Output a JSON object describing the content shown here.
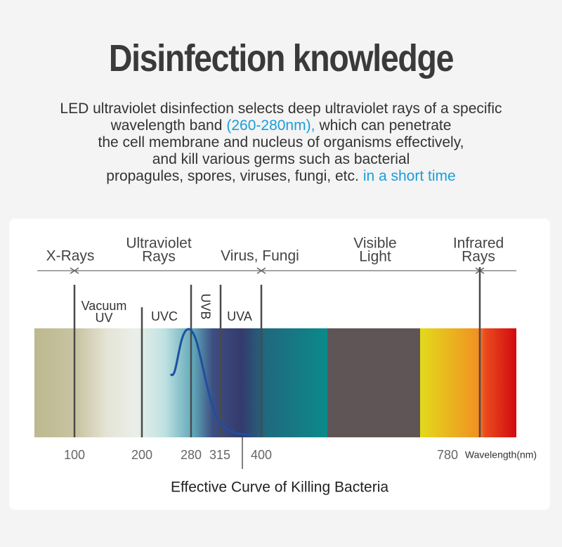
{
  "header": {
    "title": "Disinfection knowledge",
    "description": [
      [
        {
          "text": "LED ultraviolet disinfection selects deep ultraviolet rays of a specific",
          "highlight": false
        }
      ],
      [
        {
          "text": "wavelength band",
          "highlight": false
        },
        {
          "text": "(260-280nm),",
          "highlight": true
        },
        {
          "text": "which can penetrate",
          "highlight": false
        }
      ],
      [
        {
          "text": "the cell membrane and nucleus of organisms effectively,",
          "highlight": false
        }
      ],
      [
        {
          "text": "and kill various germs such as bacterial",
          "highlight": false
        }
      ],
      [
        {
          "text": "propagules, spores, viruses, fungi, etc.",
          "highlight": false
        },
        {
          "text": "in a short time",
          "highlight": true
        }
      ]
    ]
  },
  "spectrum": {
    "regions": [
      {
        "lines": [
          "X-Rays"
        ]
      },
      {
        "lines": [
          "Ultraviolet",
          "Rays"
        ]
      },
      {
        "lines": [
          "Virus, Fungi"
        ]
      },
      {
        "lines": [
          "Visible",
          "Light"
        ]
      },
      {
        "lines": [
          "Infrared",
          "Rays"
        ]
      }
    ],
    "bands": [
      {
        "lines": [
          "Vacuum",
          "UV"
        ]
      },
      {
        "lines": [
          "UVC"
        ]
      },
      {
        "lines": [
          "UVB"
        ]
      },
      {
        "lines": [
          "UVA"
        ]
      }
    ],
    "ticks": [
      100,
      200,
      280,
      315,
      400,
      780
    ],
    "unit": "Wavelength(nm)",
    "caption": "Effective Curve of Killing Bacteria"
  }
}
